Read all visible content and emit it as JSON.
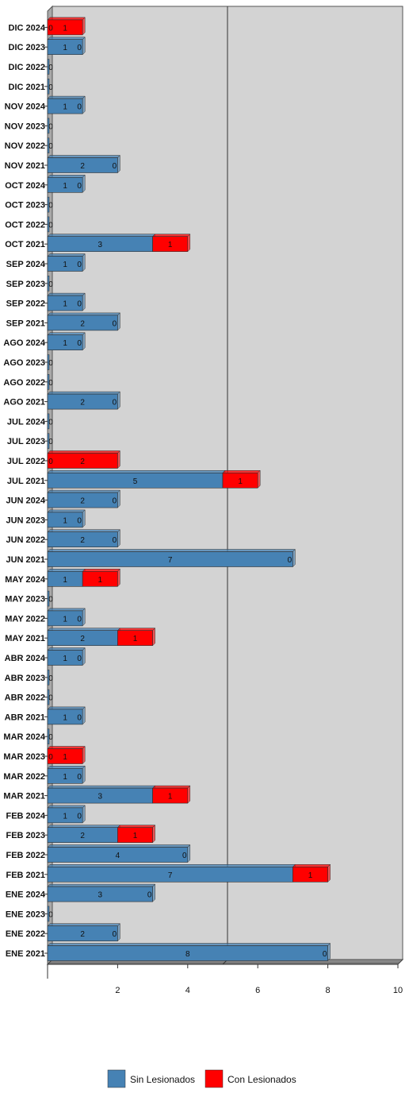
{
  "chart_data": {
    "type": "bar",
    "orientation": "horizontal",
    "stacked": true,
    "categories": [
      "DIC 2024",
      "DIC 2023",
      "DIC 2022",
      "DIC 2021",
      "NOV 2024",
      "NOV 2023",
      "NOV 2022",
      "NOV 2021",
      "OCT 2024",
      "OCT 2023",
      "OCT 2022",
      "OCT 2021",
      "SEP 2024",
      "SEP 2023",
      "SEP 2022",
      "SEP 2021",
      "AGO 2024",
      "AGO 2023",
      "AGO 2022",
      "AGO 2021",
      "JUL 2024",
      "JUL 2023",
      "JUL 2022",
      "JUL 2021",
      "JUN 2024",
      "JUN 2023",
      "JUN 2022",
      "JUN 2021",
      "MAY 2024",
      "MAY 2023",
      "MAY 2022",
      "MAY 2021",
      "ABR 2024",
      "ABR 2023",
      "ABR 2022",
      "ABR 2021",
      "MAR 2024",
      "MAR 2023",
      "MAR 2022",
      "MAR 2021",
      "FEB 2024",
      "FEB 2023",
      "FEB 2022",
      "FEB 2021",
      "ENE 2024",
      "ENE 2023",
      "ENE 2022",
      "ENE 2021"
    ],
    "series": [
      {
        "name": "Sin Lesionados",
        "color": "#4682b4",
        "values": [
          0,
          1,
          0,
          0,
          1,
          0,
          0,
          2,
          1,
          0,
          0,
          3,
          1,
          0,
          1,
          2,
          1,
          0,
          0,
          2,
          0,
          0,
          0,
          5,
          2,
          1,
          2,
          7,
          1,
          0,
          1,
          2,
          1,
          0,
          0,
          1,
          0,
          0,
          1,
          3,
          1,
          2,
          4,
          7,
          3,
          0,
          2,
          8
        ]
      },
      {
        "name": "Con Lesionados",
        "color": "#ff0000",
        "values": [
          1,
          0,
          0,
          0,
          0,
          0,
          0,
          0,
          0,
          0,
          0,
          1,
          0,
          0,
          0,
          0,
          0,
          0,
          0,
          0,
          0,
          0,
          2,
          1,
          0,
          0,
          0,
          0,
          1,
          0,
          0,
          1,
          0,
          0,
          0,
          0,
          0,
          1,
          0,
          1,
          0,
          1,
          0,
          1,
          0,
          0,
          0,
          0
        ]
      }
    ],
    "xlim": [
      0,
      10
    ],
    "xticks": [
      2,
      4,
      6,
      8,
      10
    ],
    "grid": false,
    "legend_position": "bottom"
  }
}
